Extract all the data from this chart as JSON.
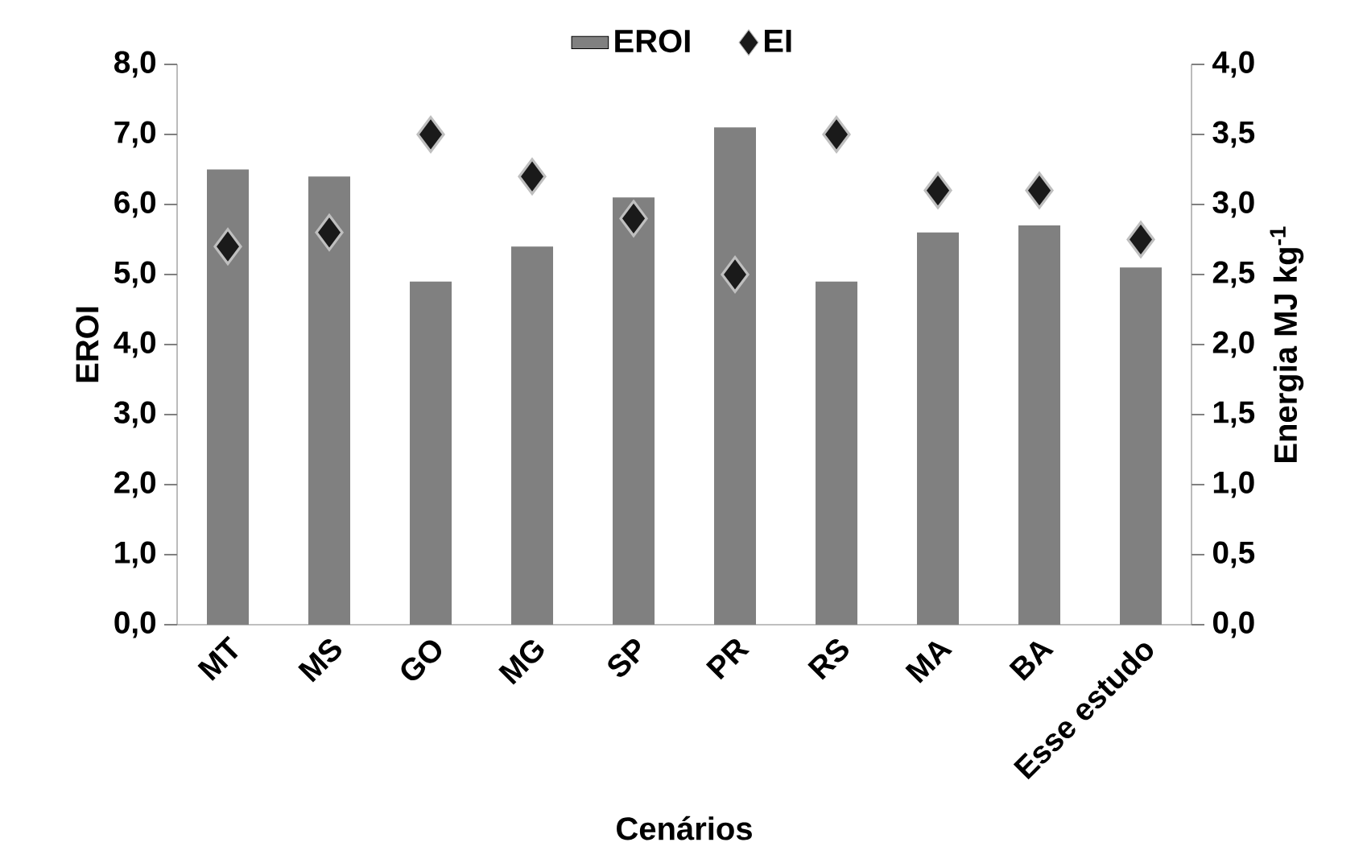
{
  "chart_data": {
    "type": "bar",
    "xlabel": "Cenários",
    "ylabel": "EROI",
    "y2label": "Energia MJ kg$^{-1}$",
    "categories": [
      "MT",
      "MS",
      "GO",
      "MG",
      "SP",
      "PR",
      "RS",
      "MA",
      "BA",
      "Esse estudo"
    ],
    "series": [
      {
        "name": "EROI",
        "color": "#808080",
        "values": [
          6.5,
          6.4,
          4.9,
          5.4,
          6.1,
          7.1,
          4.9,
          5.6,
          5.7,
          5.1
        ]
      },
      {
        "name": "EI",
        "type": "scatter",
        "axis": "y2",
        "marker": "diamond",
        "color": "#1a1a1a",
        "values": [
          2.7,
          2.8,
          3.5,
          3.2,
          2.9,
          2.5,
          3.5,
          3.1,
          3.1,
          2.75
        ]
      }
    ],
    "ylim": [
      0,
      8
    ],
    "yticks": [
      {
        "value": 0,
        "label": "0,0"
      },
      {
        "value": 1,
        "label": "1,0"
      },
      {
        "value": 2,
        "label": "2,0"
      },
      {
        "value": 3,
        "label": "3,0"
      },
      {
        "value": 4,
        "label": "4,0"
      },
      {
        "value": 5,
        "label": "5,0"
      },
      {
        "value": 6,
        "label": "6,0"
      },
      {
        "value": 7,
        "label": "7,0"
      },
      {
        "value": 8,
        "label": "8,0"
      }
    ],
    "y2lim": [
      0,
      4
    ],
    "y2ticks": [
      {
        "value": 0,
        "label": "0,0"
      },
      {
        "value": 0.5,
        "label": "0,5"
      },
      {
        "value": 1,
        "label": "1,0"
      },
      {
        "value": 1.5,
        "label": "1,5"
      },
      {
        "value": 2,
        "label": "2,0"
      },
      {
        "value": 2.5,
        "label": "2,5"
      },
      {
        "value": 3,
        "label": "3,0"
      },
      {
        "value": 3.5,
        "label": "3,5"
      },
      {
        "value": 4,
        "label": "4,0"
      }
    ],
    "legend": "top",
    "grid": false
  }
}
